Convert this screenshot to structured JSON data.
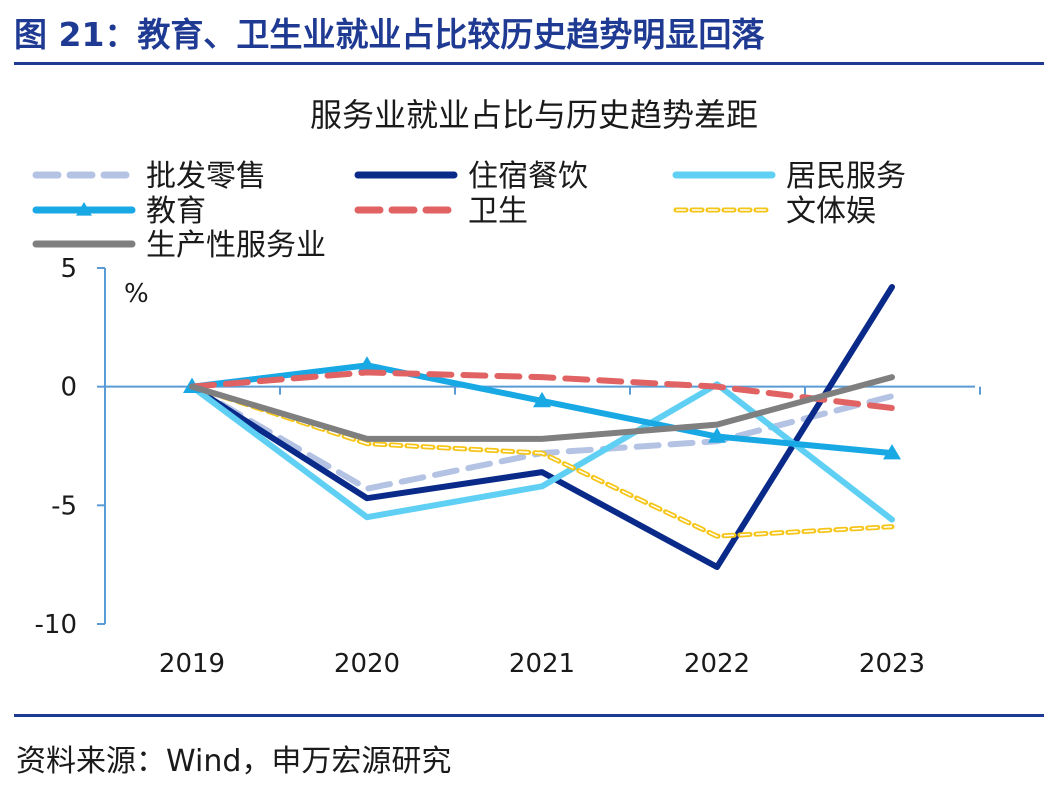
{
  "figure": {
    "title": "图 21：教育、卫生业就业占比较历史趋势明显回落",
    "source": "资料来源：Wind，申万宏源研究"
  },
  "chart_data": {
    "type": "line",
    "title": "服务业就业占比与历史趋势差距",
    "ylabel": "%",
    "xlabel": "",
    "x": [
      "2019",
      "2020",
      "2021",
      "2022",
      "2023"
    ],
    "ylim": [
      -10,
      5
    ],
    "yticks": [
      5,
      0,
      -5,
      -10
    ],
    "grid": false,
    "legend_position": "top",
    "series": [
      {
        "name": "批发零售",
        "values": [
          0,
          -4.3,
          -2.8,
          -2.3,
          -0.4
        ],
        "color": "#b4c3e4",
        "dash": "dash",
        "marker": "none"
      },
      {
        "name": "住宿餐饮",
        "values": [
          0,
          -4.7,
          -3.6,
          -7.6,
          4.2
        ],
        "color": "#0a2a8a",
        "dash": "solid",
        "marker": "none"
      },
      {
        "name": "居民服务",
        "values": [
          0,
          -5.5,
          -4.2,
          0.1,
          -5.6
        ],
        "color": "#5fd0f3",
        "dash": "solid",
        "marker": "none"
      },
      {
        "name": "教育",
        "values": [
          0,
          0.9,
          -0.6,
          -2.1,
          -2.8
        ],
        "color": "#18a8e4",
        "dash": "solid",
        "marker": "triangle"
      },
      {
        "name": "卫生",
        "values": [
          0,
          0.6,
          0.4,
          0.0,
          -0.9
        ],
        "color": "#e06262",
        "dash": "dash",
        "marker": "none"
      },
      {
        "name": "文体娱",
        "values": [
          0,
          -2.4,
          -2.8,
          -6.3,
          -5.9
        ],
        "color": "#f5c518",
        "dash": "dot",
        "marker": "none"
      },
      {
        "name": "生产性服务业",
        "values": [
          0,
          -2.2,
          -2.2,
          -1.6,
          0.4
        ],
        "color": "#7f7f7f",
        "dash": "solid",
        "marker": "none"
      }
    ]
  }
}
